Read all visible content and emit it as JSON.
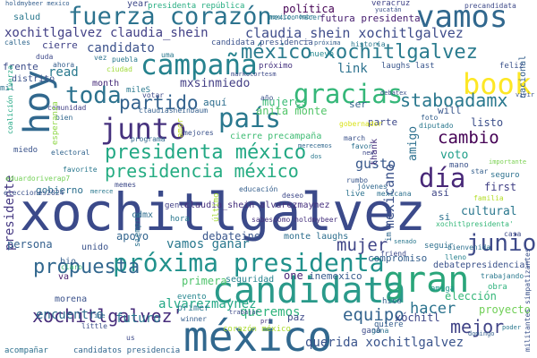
{
  "words": [
    {
      "text": "xochitlgalvez",
      "color": "#3b4a8a"
    },
    {
      "text": "méxico",
      "color": "#31688e"
    },
    {
      "text": "candidata",
      "color": "#2a9a8a"
    },
    {
      "text": "próxima presidenta",
      "color": "#21918c"
    },
    {
      "text": "junio",
      "color": "#3e4a89"
    },
    {
      "text": "gran",
      "color": "#2aa57a"
    },
    {
      "text": "book",
      "color": "#fde725"
    },
    {
      "text": "vamos",
      "color": "#31688e"
    },
    {
      "text": "fuerza corazón",
      "color": "#2c738e"
    },
    {
      "text": "hoy",
      "color": "#31688e"
    },
    {
      "text": "campaña",
      "color": "#26828e"
    },
    {
      "text": "junto",
      "color": "#46327e"
    },
    {
      "text": "país",
      "color": "#2a788e"
    },
    {
      "text": "gracias",
      "color": "#35b779"
    },
    {
      "text": "toda",
      "color": "#2c728e"
    },
    {
      "text": "día",
      "color": "#482878"
    },
    {
      "text": "presidenta méxico",
      "color": "#22a884"
    },
    {
      "text": "presidencia méxico",
      "color": "#25ac82"
    },
    {
      "text": "méxico xochitlgalvez",
      "color": "#2a7b8e"
    },
    {
      "text": "propuesta",
      "color": "#31678e"
    },
    {
      "text": "xochitlgalvez'",
      "color": "#472d7b"
    },
    {
      "text": "staboadamx",
      "color": "#2a788e"
    },
    {
      "text": "partido",
      "color": "#33628d"
    },
    {
      "text": "cambio",
      "color": "#440154"
    },
    {
      "text": "mejor",
      "color": "#414487"
    },
    {
      "text": "hacer",
      "color": "#2c738e"
    },
    {
      "text": "equipo",
      "color": "#33638d"
    },
    {
      "text": "mujer",
      "color": "#404688"
    },
    {
      "text": "querida xochitlgalvez",
      "color": "#3a548c"
    },
    {
      "text": "candidato",
      "color": "#3b518b"
    },
    {
      "text": "claudia_shein xochitlgalvez",
      "color": "#3e4c8a"
    },
    {
      "text": "xochitlgalvez claudia_shein",
      "color": "#424086"
    },
    {
      "text": "presidente",
      "color": "#453882"
    },
    {
      "text": "mexicano",
      "color": "#3b528b"
    },
    {
      "text": "encuentro",
      "color": "#2f6c8e"
    },
    {
      "text": "futuro",
      "color": "#2a768e"
    },
    {
      "text": "alvarezmaynez",
      "color": "#22a785"
    },
    {
      "text": "queremos",
      "color": "#2fb47c"
    },
    {
      "text": "gusto",
      "color": "#38588c"
    },
    {
      "text": "vamos ganar",
      "color": "#2a788e"
    },
    {
      "text": "debateine",
      "color": "#39568c"
    },
    {
      "text": "mxsinmiedo",
      "color": "#433e85"
    },
    {
      "text": "link",
      "color": "#2c728e"
    },
    {
      "text": "read",
      "color": "#29798e"
    },
    {
      "text": "voto",
      "color": "#1f9e89"
    },
    {
      "text": "amigo",
      "color": "#2d708e"
    },
    {
      "text": "mujeres",
      "color": "#3bbb75"
    },
    {
      "text": "anita monte",
      "color": "#52c569"
    },
    {
      "text": "cultural",
      "color": "#2a778e"
    },
    {
      "text": "primera",
      "color": "#4ec36b"
    },
    {
      "text": "seguridad",
      "color": "#26828e"
    },
    {
      "text": "monte laughs",
      "color": "#2e6f8e"
    },
    {
      "text": "inemexico",
      "color": "#375b8d"
    },
    {
      "text": "apoyo",
      "color": "#32658e"
    },
    {
      "text": "elección",
      "color": "#35b779"
    },
    {
      "text": "proyecto",
      "color": "#70cf57"
    },
    {
      "text": "xóchitl",
      "color": "#3f4889"
    },
    {
      "text": "debatepresidencial",
      "color": "#3b528b"
    },
    {
      "text": "compromiso",
      "color": "#355f8d"
    },
    {
      "text": "listo",
      "color": "#3c4f8a"
    },
    {
      "text": "first",
      "color": "#424186"
    },
    {
      "text": "persona",
      "color": "#34608d"
    },
    {
      "text": "gobierno",
      "color": "#2d708e"
    },
    {
      "text": "política",
      "color": "#440154"
    },
    {
      "text": "futura presidenta",
      "color": "#482071"
    },
    {
      "text": "candidata presidencia",
      "color": "#3b528b"
    },
    {
      "text": "presidenta república",
      "color": "#26ad81"
    },
    {
      "text": "year",
      "color": "#3e4989"
    },
    {
      "text": "salud",
      "color": "#2a788e"
    },
    {
      "text": "cierre",
      "color": "#414287"
    },
    {
      "text": "frente",
      "color": "#3d4e8a"
    },
    {
      "text": "distrito",
      "color": "#3b528b"
    },
    {
      "text": "month",
      "color": "#472c7a"
    },
    {
      "text": "mileS",
      "color": "#2a788e"
    },
    {
      "text": "aquí",
      "color": "#2e6e8e"
    },
    {
      "text": "ser",
      "color": "#33638d"
    },
    {
      "text": "will",
      "color": "#39568c"
    },
    {
      "text": "parte",
      "color": "#3e4989"
    },
    {
      "text": "si",
      "color": "#2c718e"
    },
    {
      "text": "así",
      "color": "#3f4788"
    },
    {
      "text": "one",
      "color": "#482475"
    },
    {
      "text": "paz",
      "color": "#3e4a89"
    },
    {
      "text": "hice",
      "color": "#33628d"
    },
    {
      "text": "amiga",
      "color": "#1f968b"
    },
    {
      "text": "obra",
      "color": "#2db27d"
    },
    {
      "text": "quiere",
      "color": "#355e8d"
    },
    {
      "text": "ganó",
      "color": "#3e4c8a"
    },
    {
      "text": "primer",
      "color": "#2a788e"
    },
    {
      "text": "evento",
      "color": "#24868e"
    },
    {
      "text": "cdmx",
      "color": "#2e6e8e"
    },
    {
      "text": "gente",
      "color": "#424186"
    },
    {
      "text": "claudia_shein alvarezmaynez",
      "color": "#46307e"
    },
    {
      "text": "bio",
      "color": "#355f8d"
    },
    {
      "text": "unido",
      "color": "#3a538b"
    },
    {
      "text": "va",
      "color": "#481a6c"
    },
    {
      "text": "cierre precampaña",
      "color": "#3fbc73"
    },
    {
      "text": "corazón méxico",
      "color": "#addc30"
    },
    {
      "text": "candidatos presidencia",
      "color": "#31668e"
    },
    {
      "text": "morena",
      "color": "#3b528b"
    },
    {
      "text": "acompañar",
      "color": "#2d708e"
    },
    {
      "text": "winner",
      "color": "#355e8d"
    },
    {
      "text": "little",
      "color": "#3c508b"
    },
    {
      "text": "seguir",
      "color": "#2e6f8e"
    },
    {
      "text": "friend",
      "color": "#3e4a89"
    },
    {
      "text": "lleno",
      "color": "#26828e"
    },
    {
      "text": "trabajando",
      "color": "#2a788e"
    },
    {
      "text": "veracruz",
      "color": "#404387"
    },
    {
      "text": "precandidata",
      "color": "#3e4a89"
    },
    {
      "text": "nacional",
      "color": "#35608d"
    },
    {
      "text": "feliz",
      "color": "#3b528b"
    },
    {
      "text": "laughs last",
      "color": "#39568c"
    },
    {
      "text": "próximo",
      "color": "#46337f"
    },
    {
      "text": "nuevo",
      "color": "#24878e"
    },
    {
      "text": "historia",
      "color": "#2a778e"
    },
    {
      "text": "mexico hacer",
      "color": "#2a788e"
    },
    {
      "text": "ahora",
      "color": "#355e8d"
    },
    {
      "text": "comunidad",
      "color": "#424186"
    },
    {
      "text": "bien",
      "color": "#31688e"
    },
    {
      "text": "miedo",
      "color": "#3a538b"
    },
    {
      "text": "favorite",
      "color": "#2a788e"
    },
    {
      "text": "electoral",
      "color": "#32658e"
    },
    {
      "text": "elecciones2024",
      "color": "#3b528b"
    },
    {
      "text": "eduardoriverap7",
      "color": "#73d056"
    },
    {
      "text": "memes",
      "color": "#3e4a89"
    },
    {
      "text": "mexicana",
      "color": "#2d708e"
    },
    {
      "text": "educación",
      "color": "#355f8d"
    },
    {
      "text": "deseo",
      "color": "#3e4989"
    },
    {
      "text": "jóvenes",
      "color": "#31688e"
    },
    {
      "text": "live",
      "color": "#2c728e"
    },
    {
      "text": "rumbo",
      "color": "#39568c"
    },
    {
      "text": "sabescomo holdmybeer",
      "color": "#46327e"
    },
    {
      "text": "hora",
      "color": "#2a788e"
    },
    {
      "text": "claro",
      "color": "#3fbc73"
    },
    {
      "text": "mano",
      "color": "#3b528b"
    },
    {
      "text": "star",
      "color": "#355f8d"
    },
    {
      "text": "familia",
      "color": "#b5de2b"
    },
    {
      "text": "seguro",
      "color": "#2c718e"
    },
    {
      "text": "gobernador",
      "color": "#d8e219"
    },
    {
      "text": "diputado",
      "color": "#2a788e"
    },
    {
      "text": "foto",
      "color": "#34608d"
    },
    {
      "text": "bienvenida",
      "color": "#2d708e"
    },
    {
      "text": "programa",
      "color": "#31688e"
    },
    {
      "text": "mejores",
      "color": "#3b528b"
    },
    {
      "text": "claudiasheinbaum",
      "color": "#355f8d"
    },
    {
      "text": "puebla",
      "color": "#2a788e"
    },
    {
      "text": "ciudad",
      "color": "#a0da39"
    },
    {
      "text": "votar",
      "color": "#3e4a89"
    },
    {
      "text": "mil",
      "color": "#2c718e"
    },
    {
      "text": "año",
      "color": "#3b528b"
    },
    {
      "text": "uma",
      "color": "#2a788e"
    },
    {
      "text": "calles",
      "color": "#31688e"
    },
    {
      "text": "duda",
      "color": "#3e4989"
    },
    {
      "text": "vez",
      "color": "#2c718e"
    },
    {
      "text": "holdmybeer mexico",
      "color": "#355f8d"
    },
    {
      "text": "mexico nombr",
      "color": "#2a788e"
    },
    {
      "text": "yucatán",
      "color": "#3b528b"
    },
    {
      "text": "próxima",
      "color": "#355f8d"
    },
    {
      "text": "markocortesm",
      "color": "#3e4a89"
    },
    {
      "text": "merecemos",
      "color": "#31688e"
    },
    {
      "text": "dos",
      "color": "#2a788e"
    },
    {
      "text": "debatex",
      "color": "#3b528b"
    },
    {
      "text": "thank",
      "color": "#46327e"
    },
    {
      "text": "favor",
      "color": "#2c718e"
    },
    {
      "text": "new",
      "color": "#3e4989"
    },
    {
      "text": "march",
      "color": "#3b528b"
    },
    {
      "text": "xochitlpresidenta'",
      "color": "#35b779"
    },
    {
      "text": "importante",
      "color": "#7ad151"
    },
    {
      "text": "casa",
      "color": "#3e4a89"
    },
    {
      "text": "poder",
      "color": "#2a788e"
    },
    {
      "text": "militantes simpatizantes",
      "color": "#3b528b"
    },
    {
      "text": "domingo",
      "color": "#355f8d"
    },
    {
      "text": "gana",
      "color": "#2c718e"
    },
    {
      "text": "trabajar",
      "color": "#3e4989"
    },
    {
      "text": "ine",
      "color": "#31688e"
    },
    {
      "text": "pri",
      "color": "#46327e"
    },
    {
      "text": "merece",
      "color": "#2a788e"
    },
    {
      "text": "último",
      "color": "#a5db36"
    },
    {
      "text": "siempre",
      "color": "#2c728e"
    },
    {
      "text": "amor",
      "color": "#c2df23"
    },
    {
      "text": "coalición fuerza",
      "color": "#22a884"
    },
    {
      "text": "esperanza",
      "color": "#8ed645"
    },
    {
      "text": "vivir",
      "color": "#3b528b"
    },
    {
      "text": "us",
      "color": "#3e4a89"
    },
    {
      "text": "senado",
      "color": "#2a788e"
    },
    {
      "text": "im",
      "color": "#31688e"
    }
  ]
}
